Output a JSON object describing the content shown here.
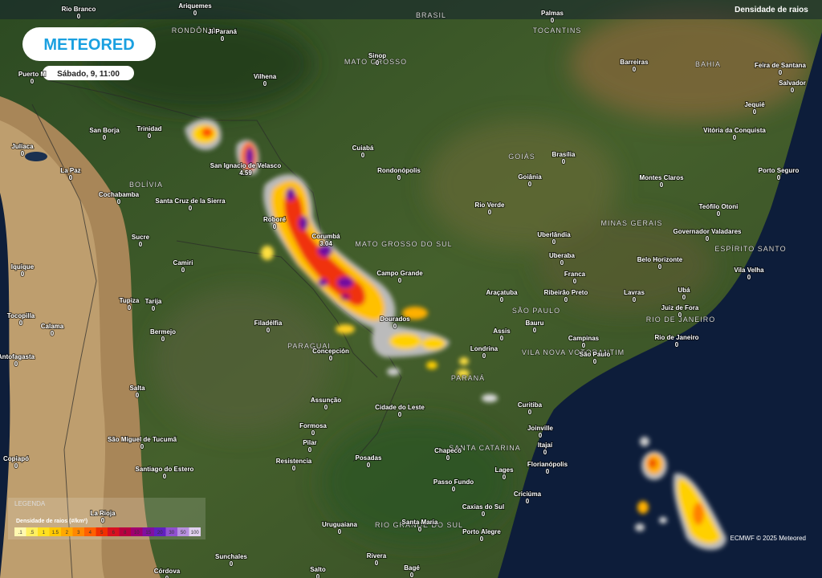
{
  "header": {
    "logo": "METEORED",
    "time": "Sábado, 9, 11:00",
    "layer": "Densidade de raios"
  },
  "regions": [
    "BRASIL",
    "RONDÔNIA",
    "TOCANTINS",
    "MATO GROSSO",
    "BAHIA",
    "GOIÁS",
    "BOLÍVIA",
    "MATO GROSSO DO SUL",
    "MINAS GERAIS",
    "ESPÍRITO SANTO",
    "SÃO PAULO",
    "RIO DE JANEIRO",
    "PARAGUAI",
    "PARANÁ",
    "SANTA CATARINA",
    "RIO GRANDE DO SUL",
    "VILA NOVA VOTORANTIM"
  ],
  "places": [
    {
      "name": "Rio Branco",
      "value": 0
    },
    {
      "name": "Ariquemes",
      "value": 0
    },
    {
      "name": "Ji-Paraná",
      "value": 0
    },
    {
      "name": "Palmas",
      "value": 0
    },
    {
      "name": "Sinop",
      "value": 0
    },
    {
      "name": "Vilhena",
      "value": 0
    },
    {
      "name": "Barreiras",
      "value": 0
    },
    {
      "name": "Feira de Santana",
      "value": 0
    },
    {
      "name": "Salvador",
      "value": 0
    },
    {
      "name": "Jequié",
      "value": 0
    },
    {
      "name": "Puerto M",
      "value": 0
    },
    {
      "name": "San Borja",
      "value": 0
    },
    {
      "name": "Trinidad",
      "value": 0
    },
    {
      "name": "Vitória da Conquista",
      "value": 0
    },
    {
      "name": "Cuiabá",
      "value": 0
    },
    {
      "name": "Brasília",
      "value": 0
    },
    {
      "name": "Porto Seguro",
      "value": 0
    },
    {
      "name": "Juliaca",
      "value": 0
    },
    {
      "name": "San Ignacio de Velasco",
      "value": 4.59
    },
    {
      "name": "La Paz",
      "value": 0
    },
    {
      "name": "Rondonópolis",
      "value": 0
    },
    {
      "name": "Goiânia",
      "value": 0
    },
    {
      "name": "Montes Claros",
      "value": 0
    },
    {
      "name": "Cochabamba",
      "value": 0
    },
    {
      "name": "Santa Cruz de la Sierra",
      "value": 0
    },
    {
      "name": "Teófilo Otoni",
      "value": 0
    },
    {
      "name": "Rio Verde",
      "value": 0
    },
    {
      "name": "Roboré",
      "value": 0
    },
    {
      "name": "Uberlândia",
      "value": 0
    },
    {
      "name": "Governador Valadares",
      "value": 0
    },
    {
      "name": "Corumbá",
      "value": 3.04
    },
    {
      "name": "Sucre",
      "value": 0
    },
    {
      "name": "Uberaba",
      "value": 0
    },
    {
      "name": "Belo Horizonte",
      "value": 0
    },
    {
      "name": "Camiri",
      "value": 0
    },
    {
      "name": "Campo Grande",
      "value": 0
    },
    {
      "name": "Franca",
      "value": 0
    },
    {
      "name": "Vila Velha",
      "value": 0
    },
    {
      "name": "Iquique",
      "value": 0
    },
    {
      "name": "Araçatuba",
      "value": 0
    },
    {
      "name": "Ribeirão Preto",
      "value": 0
    },
    {
      "name": "Lavras",
      "value": 0
    },
    {
      "name": "Ubá",
      "value": 0
    },
    {
      "name": "Tupiza",
      "value": 0
    },
    {
      "name": "Tarija",
      "value": 0
    },
    {
      "name": "Juiz de Fora",
      "value": 0
    },
    {
      "name": "Tocopilla",
      "value": 0
    },
    {
      "name": "Calama",
      "value": 0
    },
    {
      "name": "Bauru",
      "value": 0
    },
    {
      "name": "Dourados",
      "value": 0
    },
    {
      "name": "Filadélfia",
      "value": 0
    },
    {
      "name": "Assis",
      "value": 0
    },
    {
      "name": "Bermejo",
      "value": 0
    },
    {
      "name": "Campinas",
      "value": 0
    },
    {
      "name": "Rio de Janeiro",
      "value": 0
    },
    {
      "name": "Concepción",
      "value": 0
    },
    {
      "name": "Londrina",
      "value": 0
    },
    {
      "name": "São Paulo",
      "value": 0
    },
    {
      "name": "Antofagasta",
      "value": 0
    },
    {
      "name": "Salta",
      "value": 0
    },
    {
      "name": "Assunção",
      "value": 0
    },
    {
      "name": "Curitiba",
      "value": 0
    },
    {
      "name": "Cidade do Leste",
      "value": 0
    },
    {
      "name": "Formosa",
      "value": 0
    },
    {
      "name": "Joinville",
      "value": 0
    },
    {
      "name": "São Miguel de Tucumã",
      "value": 0
    },
    {
      "name": "Itajaí",
      "value": 0
    },
    {
      "name": "Pilar",
      "value": 0
    },
    {
      "name": "Chapecó",
      "value": 0
    },
    {
      "name": "Copiapó",
      "value": 0
    },
    {
      "name": "Resistencia",
      "value": 0
    },
    {
      "name": "Posadas",
      "value": 0
    },
    {
      "name": "Florianópolis",
      "value": 0
    },
    {
      "name": "Santiago do Estero",
      "value": 0
    },
    {
      "name": "Lages",
      "value": 0
    },
    {
      "name": "Passo Fundo",
      "value": 0
    },
    {
      "name": "Criciúma",
      "value": 0
    },
    {
      "name": "Caxias do Sul",
      "value": 0
    },
    {
      "name": "La Rioja",
      "value": 0
    },
    {
      "name": "Uruguaiana",
      "value": 0
    },
    {
      "name": "Santa Maria",
      "value": 0
    },
    {
      "name": "Porto Alegre",
      "value": 0
    },
    {
      "name": "Sunchales",
      "value": 0
    },
    {
      "name": "Rivera",
      "value": 0
    },
    {
      "name": "Salto",
      "value": 0
    },
    {
      "name": "Bagé",
      "value": 0
    },
    {
      "name": "Córdova",
      "value": 0
    }
  ],
  "legend": {
    "heading": "LEGENDA",
    "title": "Densidade de raios (#/km²)",
    "labels": [
      ".1",
      ".5",
      "1",
      "1.5",
      "2",
      "3",
      "4",
      "5",
      "6",
      "8",
      "10",
      "15",
      "20",
      "30",
      "50",
      "100"
    ],
    "colors": [
      "#fff8b0",
      "#ffef60",
      "#ffe020",
      "#ffc800",
      "#ffa800",
      "#ff8800",
      "#ff6000",
      "#f03000",
      "#d81020",
      "#b80040",
      "#a00070",
      "#8010a0",
      "#6020c0",
      "#9050d0",
      "#b890e0",
      "#e0d0f0"
    ]
  },
  "credit": "ECMWF © 2025 Meteored"
}
